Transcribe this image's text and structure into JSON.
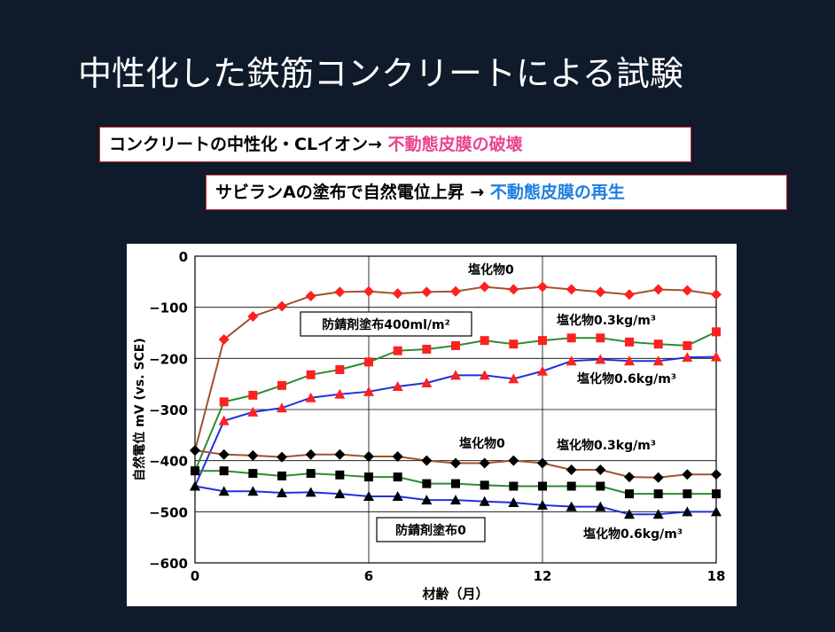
{
  "slide": {
    "title": "中性化した鉄筋コンクリートによる試験",
    "callout1_prefix": "コンクリートの中性化・CLイオン→ ",
    "callout1_highlight": "不動態皮膜の破壊",
    "callout2_prefix": "サビランAの塗布で自然電位上昇 → ",
    "callout2_highlight": "不動態皮膜の再生",
    "highlight_colors": {
      "pink": "#e8458a",
      "blue": "#1e7fe0"
    }
  },
  "chart_data": {
    "type": "line",
    "xlabel": "材齢（月）",
    "ylabel": "自然電位 mV (vs. SCE)",
    "xlim": [
      0,
      18
    ],
    "ylim": [
      -600,
      0
    ],
    "x_ticks": [
      "0",
      "6",
      "12",
      "18"
    ],
    "y_ticks": [
      "0",
      "−100",
      "−200",
      "−300",
      "−400",
      "−500",
      "−600"
    ],
    "grid": true,
    "x": [
      0,
      1,
      2,
      3,
      4,
      5,
      6,
      7,
      8,
      9,
      10,
      11,
      12,
      13,
      14,
      15,
      16,
      17,
      18
    ],
    "group_labels": [
      "防錆剤塗布400ml/m²",
      "防錆剤塗布0"
    ],
    "series": [
      {
        "name": "塩化物0",
        "group": "防錆剤塗布400ml/m²",
        "line_color": "#a0522d",
        "marker_color": "#ff2020",
        "marker": "diamond",
        "values": [
          -380,
          -163,
          -118,
          -98,
          -78,
          -70,
          -69,
          -73,
          -70,
          -69,
          -60,
          -65,
          -60,
          -65,
          -70,
          -75,
          -65,
          -67,
          -75
        ]
      },
      {
        "name": "塩化物0.3kg/m³",
        "group": "防錆剤塗布400ml/m²",
        "line_color": "#2e8b2e",
        "marker_color": "#ff2020",
        "marker": "square",
        "values": [
          -420,
          -285,
          -272,
          -253,
          -232,
          -222,
          -207,
          -185,
          -182,
          -175,
          -165,
          -172,
          -165,
          -160,
          -160,
          -168,
          -172,
          -175,
          -148
        ]
      },
      {
        "name": "塩化物0.6kg/m³",
        "group": "防錆剤塗布400ml/m²",
        "line_color": "#2030e0",
        "marker_color": "#ff2020",
        "marker": "triangle",
        "values": [
          -450,
          -322,
          -305,
          -297,
          -277,
          -270,
          -265,
          -255,
          -248,
          -233,
          -233,
          -240,
          -225,
          -205,
          -202,
          -205,
          -205,
          -198,
          -197
        ]
      },
      {
        "name": "塩化物0",
        "group": "防錆剤塗布0",
        "line_color": "#a0522d",
        "marker_color": "#000000",
        "marker": "diamond",
        "values": [
          -380,
          -388,
          -390,
          -393,
          -388,
          -388,
          -392,
          -392,
          -400,
          -405,
          -405,
          -400,
          -405,
          -418,
          -418,
          -432,
          -433,
          -427,
          -427
        ]
      },
      {
        "name": "塩化物0.3kg/m³",
        "group": "防錆剤塗布0",
        "line_color": "#2e8b2e",
        "marker_color": "#000000",
        "marker": "square",
        "values": [
          -420,
          -420,
          -425,
          -430,
          -425,
          -428,
          -432,
          -432,
          -445,
          -445,
          -448,
          -450,
          -450,
          -450,
          -450,
          -465,
          -465,
          -465,
          -465
        ]
      },
      {
        "name": "塩化物0.6kg/m³",
        "group": "防錆剤塗布0",
        "line_color": "#2030e0",
        "marker_color": "#000000",
        "marker": "triangle",
        "values": [
          -450,
          -460,
          -460,
          -463,
          -462,
          -465,
          -470,
          -470,
          -477,
          -477,
          -480,
          -482,
          -487,
          -490,
          -490,
          -505,
          -505,
          -500,
          -500
        ]
      }
    ]
  }
}
